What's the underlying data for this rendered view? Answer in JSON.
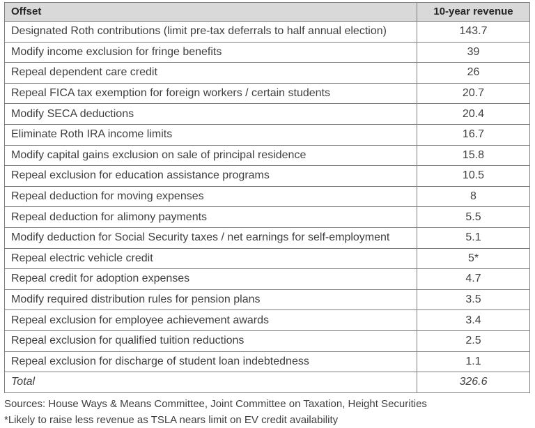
{
  "table": {
    "headers": [
      "Offset",
      "10-year revenue"
    ],
    "rows": [
      {
        "offset": "Designated Roth contributions (limit pre-tax deferrals to half annual election)",
        "revenue": "143.7"
      },
      {
        "offset": "Modify income exclusion for fringe benefits",
        "revenue": "39"
      },
      {
        "offset": "Repeal dependent care credit",
        "revenue": "26"
      },
      {
        "offset": "Repeal FICA tax exemption for foreign workers / certain students",
        "revenue": "20.7"
      },
      {
        "offset": "Modify SECA deductions",
        "revenue": "20.4"
      },
      {
        "offset": "Eliminate Roth IRA income limits",
        "revenue": "16.7"
      },
      {
        "offset": "Modify capital gains exclusion on sale of principal residence",
        "revenue": "15.8"
      },
      {
        "offset": "Repeal exclusion for education assistance programs",
        "revenue": "10.5"
      },
      {
        "offset": "Repeal deduction for moving expenses",
        "revenue": "8"
      },
      {
        "offset": "Repeal deduction for alimony payments",
        "revenue": "5.5"
      },
      {
        "offset": "Modify deduction for Social Security taxes / net earnings for self-employment",
        "revenue": "5.1"
      },
      {
        "offset": "Repeal electric vehicle credit",
        "revenue": "5*"
      },
      {
        "offset": "Repeal credit for adoption expenses",
        "revenue": "4.7"
      },
      {
        "offset": "Modify required distribution rules for pension plans",
        "revenue": "3.5"
      },
      {
        "offset": "Repeal exclusion for employee achievement awards",
        "revenue": "3.4"
      },
      {
        "offset": "Repeal exclusion for qualified tuition reductions",
        "revenue": "2.5"
      },
      {
        "offset": "Repeal exclusion for discharge of student loan indebtedness",
        "revenue": "1.1"
      }
    ],
    "total": {
      "label": "Total",
      "value": "326.6"
    }
  },
  "notes": {
    "sources": "Sources: House Ways & Means Committee, Joint Committee on Taxation, Height Securities",
    "footnote": "*Likely to raise less revenue as TSLA nears limit on EV credit availability"
  }
}
